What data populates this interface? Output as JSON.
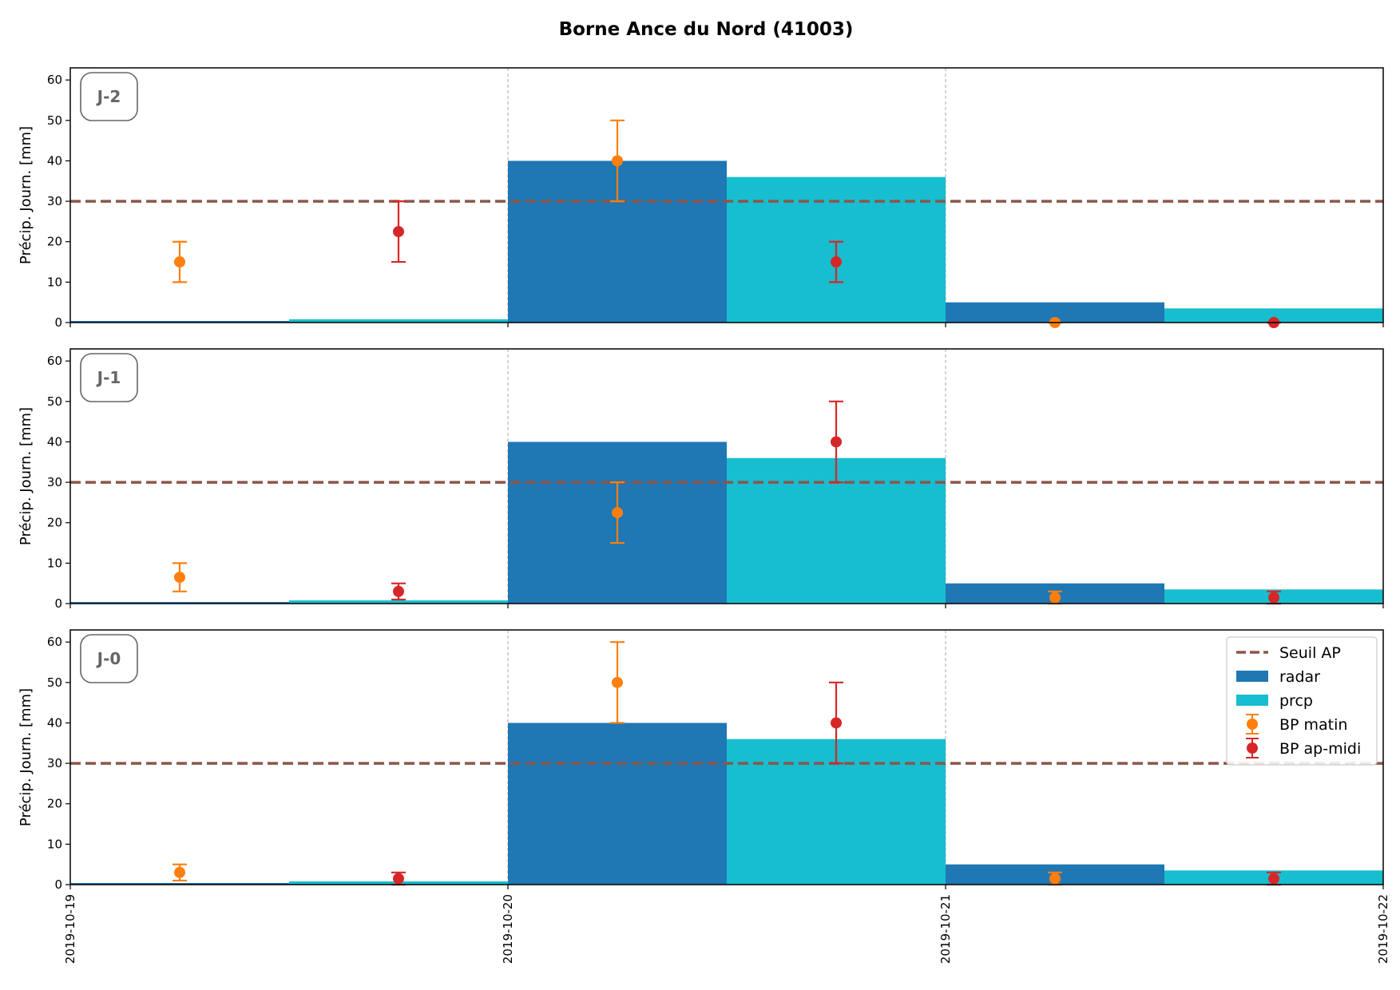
{
  "chart_data": {
    "type": "bar",
    "title": "Borne Ance du Nord (41003)",
    "ylabel": "Précip. Journ. [mm]",
    "ylim": [
      0,
      63
    ],
    "yticks": [
      0,
      10,
      20,
      30,
      40,
      50,
      60
    ],
    "xlim": [
      "2019-10-19",
      "2019-10-22"
    ],
    "xticks": [
      "2019-10-19",
      "2019-10-20",
      "2019-10-21",
      "2019-10-22"
    ],
    "threshold": 30,
    "legend_position": "upper-right",
    "legend_entries": {
      "threshold": "Seuil AP",
      "radar": "radar",
      "prcp": "prcp",
      "bp_matin": "BP matin",
      "bp_apmidi": "BP ap-midi"
    },
    "colors": {
      "radar": "#1f77b4",
      "prcp": "#17becf",
      "bp_matin": "#ff7f0e",
      "bp_apmidi": "#d62728",
      "threshold": "#8c564b",
      "gridline": "#aaaaaa",
      "label_box": "#666666"
    },
    "bars": {
      "radar": [
        {
          "from": "2019-10-19 00:00",
          "to": "2019-10-19 12:00",
          "value": 0.4
        },
        {
          "from": "2019-10-20 00:00",
          "to": "2019-10-20 12:00",
          "value": 40
        },
        {
          "from": "2019-10-21 00:00",
          "to": "2019-10-21 12:00",
          "value": 5
        }
      ],
      "prcp": [
        {
          "from": "2019-10-19 12:00",
          "to": "2019-10-20 00:00",
          "value": 0.8
        },
        {
          "from": "2019-10-20 12:00",
          "to": "2019-10-21 00:00",
          "value": 36
        },
        {
          "from": "2019-10-21 12:00",
          "to": "2019-10-22 00:00",
          "value": 3.5
        }
      ]
    },
    "panels": [
      {
        "label": "J-2",
        "bp_matin": [
          {
            "x": "2019-10-19 06:00",
            "y": 15,
            "low": 10,
            "high": 20
          },
          {
            "x": "2019-10-20 06:00",
            "y": 40,
            "low": 30,
            "high": 50
          },
          {
            "x": "2019-10-21 06:00",
            "y": 0,
            "low": 0,
            "high": 0
          }
        ],
        "bp_apmidi": [
          {
            "x": "2019-10-19 18:00",
            "y": 22.5,
            "low": 15,
            "high": 30
          },
          {
            "x": "2019-10-20 18:00",
            "y": 15,
            "low": 10,
            "high": 20
          },
          {
            "x": "2019-10-21 18:00",
            "y": 0,
            "low": 0,
            "high": 0
          }
        ]
      },
      {
        "label": "J-1",
        "bp_matin": [
          {
            "x": "2019-10-19 06:00",
            "y": 6.5,
            "low": 3,
            "high": 10
          },
          {
            "x": "2019-10-20 06:00",
            "y": 22.5,
            "low": 15,
            "high": 30
          },
          {
            "x": "2019-10-21 06:00",
            "y": 1.5,
            "low": 0,
            "high": 3
          }
        ],
        "bp_apmidi": [
          {
            "x": "2019-10-19 18:00",
            "y": 3,
            "low": 1,
            "high": 5
          },
          {
            "x": "2019-10-20 18:00",
            "y": 40,
            "low": 30,
            "high": 50
          },
          {
            "x": "2019-10-21 18:00",
            "y": 1.5,
            "low": 0,
            "high": 3
          }
        ]
      },
      {
        "label": "J-0",
        "bp_matin": [
          {
            "x": "2019-10-19 06:00",
            "y": 3,
            "low": 1,
            "high": 5
          },
          {
            "x": "2019-10-20 06:00",
            "y": 50,
            "low": 40,
            "high": 60
          },
          {
            "x": "2019-10-21 06:00",
            "y": 1.5,
            "low": 0,
            "high": 3
          }
        ],
        "bp_apmidi": [
          {
            "x": "2019-10-19 18:00",
            "y": 1.5,
            "low": 0,
            "high": 3
          },
          {
            "x": "2019-10-20 18:00",
            "y": 40,
            "low": 30,
            "high": 50
          },
          {
            "x": "2019-10-21 18:00",
            "y": 1.5,
            "low": 0,
            "high": 3
          }
        ]
      }
    ]
  }
}
